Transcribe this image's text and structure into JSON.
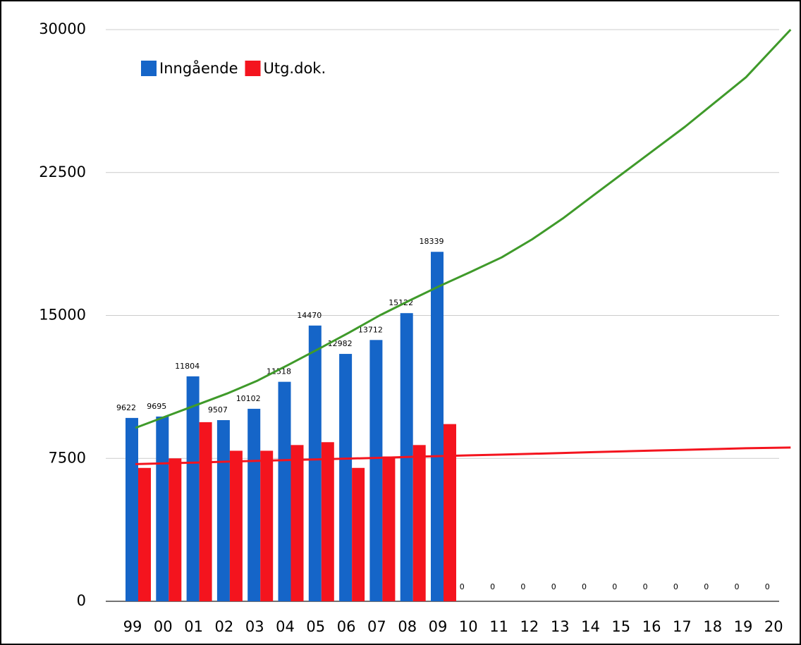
{
  "chart_data": {
    "type": "bar",
    "categories": [
      "99",
      "00",
      "01",
      "02",
      "03",
      "04",
      "05",
      "06",
      "07",
      "08",
      "09",
      "10",
      "11",
      "12",
      "13",
      "14",
      "15",
      "16",
      "17",
      "18",
      "19",
      "20"
    ],
    "series": [
      {
        "name": "Inngående",
        "color": "#1565c8",
        "values": [
          9622,
          9695,
          11804,
          9507,
          10102,
          11518,
          14470,
          12982,
          13712,
          15122,
          18339,
          0,
          0,
          0,
          0,
          0,
          0,
          0,
          0,
          0,
          0,
          0
        ]
      },
      {
        "name": "Utg.dok.",
        "color": "#f4141e",
        "values": [
          7000,
          7500,
          9400,
          7900,
          7900,
          8200,
          8350,
          7000,
          7600,
          8200,
          9300,
          null,
          null,
          null,
          null,
          null,
          null,
          null,
          null,
          null,
          null,
          null
        ]
      }
    ],
    "trendlines": [
      {
        "color": "#3f9a2a",
        "values": [
          9100,
          9700,
          10300,
          10900,
          11580,
          12400,
          13240,
          14100,
          15000,
          15800,
          16570,
          17300,
          18050,
          19000,
          20090,
          21300,
          22500,
          23700,
          24900,
          26200,
          27500,
          30000
        ]
      },
      {
        "color": "#f4141e",
        "values": [
          7200,
          7240,
          7280,
          7330,
          7370,
          7410,
          7450,
          7490,
          7530,
          7580,
          7620,
          7660,
          7700,
          7740,
          7780,
          7830,
          7870,
          7910,
          7950,
          7990,
          8030,
          8070
        ]
      }
    ],
    "ylim": [
      0,
      30000
    ],
    "yticks": [
      0,
      7500,
      15000,
      22500,
      30000
    ],
    "grid": true,
    "legend": "top-left"
  }
}
